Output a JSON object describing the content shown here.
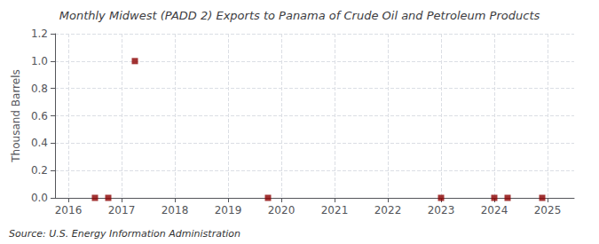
{
  "chart_data": {
    "type": "scatter",
    "title": "Monthly Midwest (PADD 2) Exports to Panama of Crude Oil and Petroleum Products",
    "ylabel": "Thousand Barrels",
    "annotations": [
      "Source: U.S. Energy Information Administration"
    ],
    "x": [
      2016.5,
      2016.75,
      2017.25,
      2019.75,
      2023.0,
      2024.0,
      2024.25,
      2024.9
    ],
    "values": [
      0.0,
      0.0,
      1.0,
      0.0,
      0.0,
      0.0,
      0.0,
      0.0
    ],
    "color": "#8b0000",
    "marker": "square",
    "xlim": [
      2015.75,
      2025.5
    ],
    "xticks": [
      2016,
      2017,
      2018,
      2019,
      2020,
      2021,
      2022,
      2023,
      2024,
      2025
    ],
    "ylim": [
      0,
      1.2
    ],
    "yticks": [
      {
        "value": 0.0,
        "label": "0.0"
      },
      0.2,
      0.4,
      0.6,
      0.8,
      {
        "value": 1.0,
        "label": "1.0"
      },
      1.2
    ],
    "grid": true
  }
}
